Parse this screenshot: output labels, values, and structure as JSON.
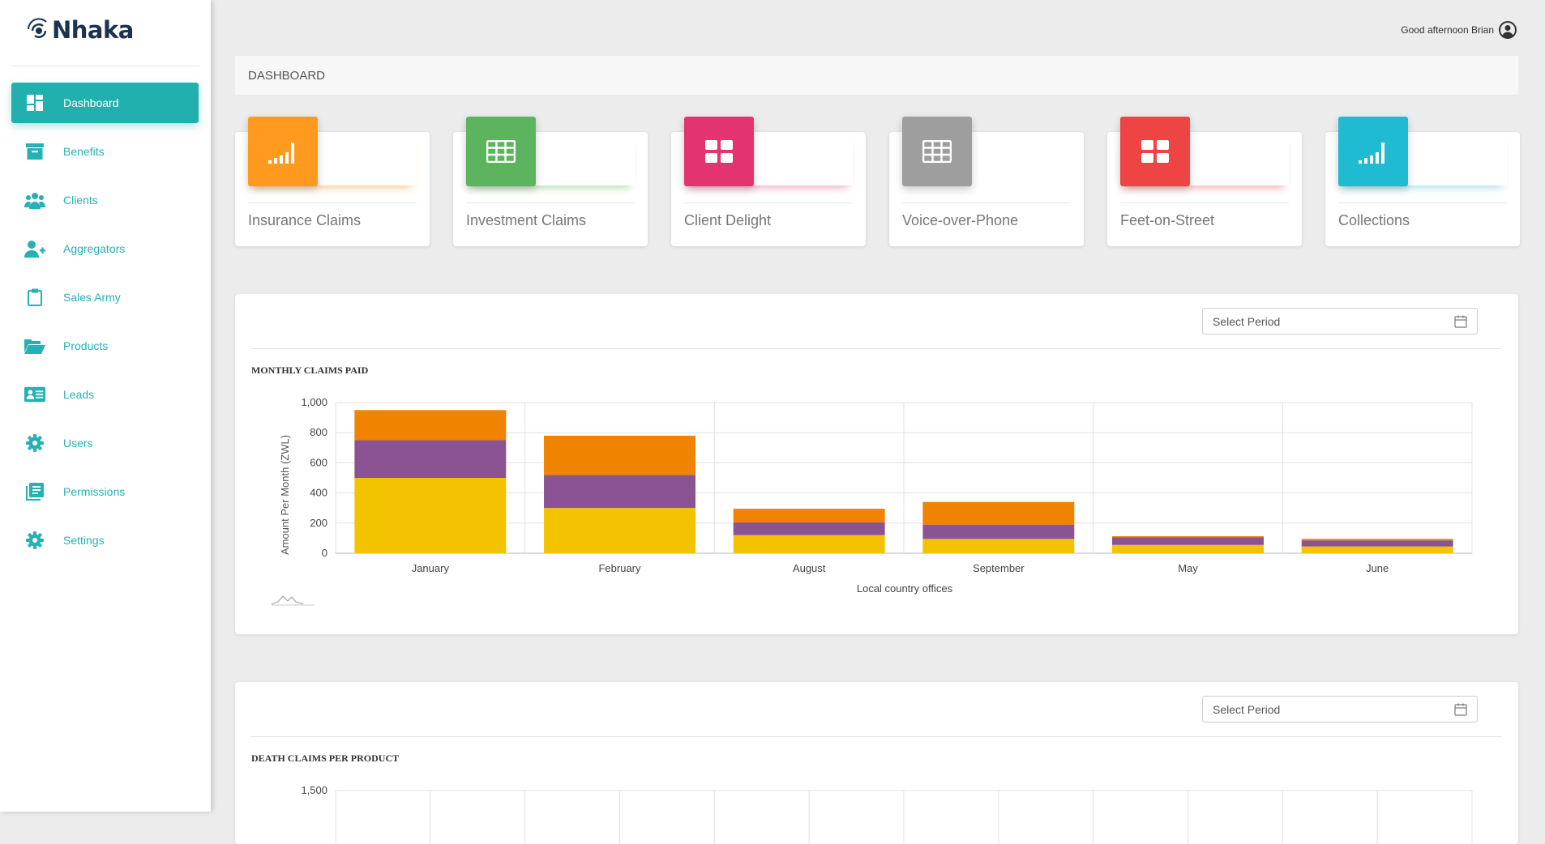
{
  "app": {
    "name": "Nhaka"
  },
  "header": {
    "greeting": "Good afternoon Brian",
    "page_title": "DASHBOARD"
  },
  "sidebar": {
    "items": [
      {
        "label": "Dashboard",
        "icon": "dashboard-icon",
        "active": true
      },
      {
        "label": "Benefits",
        "icon": "archive-box-icon"
      },
      {
        "label": "Clients",
        "icon": "people-icon"
      },
      {
        "label": "Aggregators",
        "icon": "add-user-icon"
      },
      {
        "label": "Sales Army",
        "icon": "clipboard-icon"
      },
      {
        "label": "Products",
        "icon": "folder-open-icon"
      },
      {
        "label": "Leads",
        "icon": "id-card-icon"
      },
      {
        "label": "Users",
        "icon": "gear-icon"
      },
      {
        "label": "Permissions",
        "icon": "list-icon"
      },
      {
        "label": "Settings",
        "icon": "gear-icon"
      }
    ]
  },
  "stat_cards": [
    {
      "label": "Insurance Claims",
      "icon": "signal-bars-icon",
      "color": "#ff9a1f",
      "glow": "#f5c48a"
    },
    {
      "label": "Investment Claims",
      "icon": "grid-table-icon",
      "color": "#5cb55e",
      "glow": "#a9d8a6"
    },
    {
      "label": "Client Delight",
      "icon": "dashboard-tiles-icon",
      "color": "#e33371",
      "glow": "#f0a0bd"
    },
    {
      "label": "Voice-over-Phone",
      "icon": "grid-table-icon",
      "color": "#9e9e9e",
      "glow": "#ffffff"
    },
    {
      "label": "Feet-on-Street",
      "icon": "dashboard-tiles-icon",
      "color": "#ef4444",
      "glow": "#f4a3a3"
    },
    {
      "label": "Collections",
      "icon": "signal-bars-icon",
      "color": "#1fbbd2",
      "glow": "#9fdde8"
    }
  ],
  "colors": {
    "accent": "#22b0ae",
    "series": [
      "#f4c300",
      "#8b5394",
      "#f08300"
    ]
  },
  "panels": [
    {
      "title": "MONTHLY CLAIMS PAID",
      "period_placeholder": "Select Period",
      "chart_data": {
        "type": "bar",
        "stacked": true,
        "categories": [
          "January",
          "February",
          "August",
          "September",
          "May",
          "June"
        ],
        "series": [
          {
            "values": [
              500,
              300,
              120,
              95,
              55,
              45
            ],
            "color": "#f4c300"
          },
          {
            "values": [
              250,
              220,
              85,
              95,
              50,
              40
            ],
            "color": "#8b5394"
          },
          {
            "values": [
              200,
              260,
              90,
              150,
              8,
              10
            ],
            "color": "#f08300"
          }
        ],
        "xlabel": "Local country offices",
        "ylabel": "Amount Per Month (ZWL)",
        "ylim": [
          0,
          1000
        ],
        "yticks": [
          0,
          200,
          400,
          600,
          800,
          1000
        ],
        "ytick_labels": [
          "0",
          "200",
          "400",
          "600",
          "800",
          "1,000"
        ],
        "grid": true
      }
    },
    {
      "title": "DEATH CLAIMS PER PRODUCT",
      "period_placeholder": "Select Period",
      "chart_data": {
        "type": "bar",
        "categories": [],
        "ylim": [
          0,
          1500
        ],
        "yticks": [
          1500
        ],
        "ytick_labels": [
          "1,500"
        ],
        "grid": true
      }
    }
  ]
}
